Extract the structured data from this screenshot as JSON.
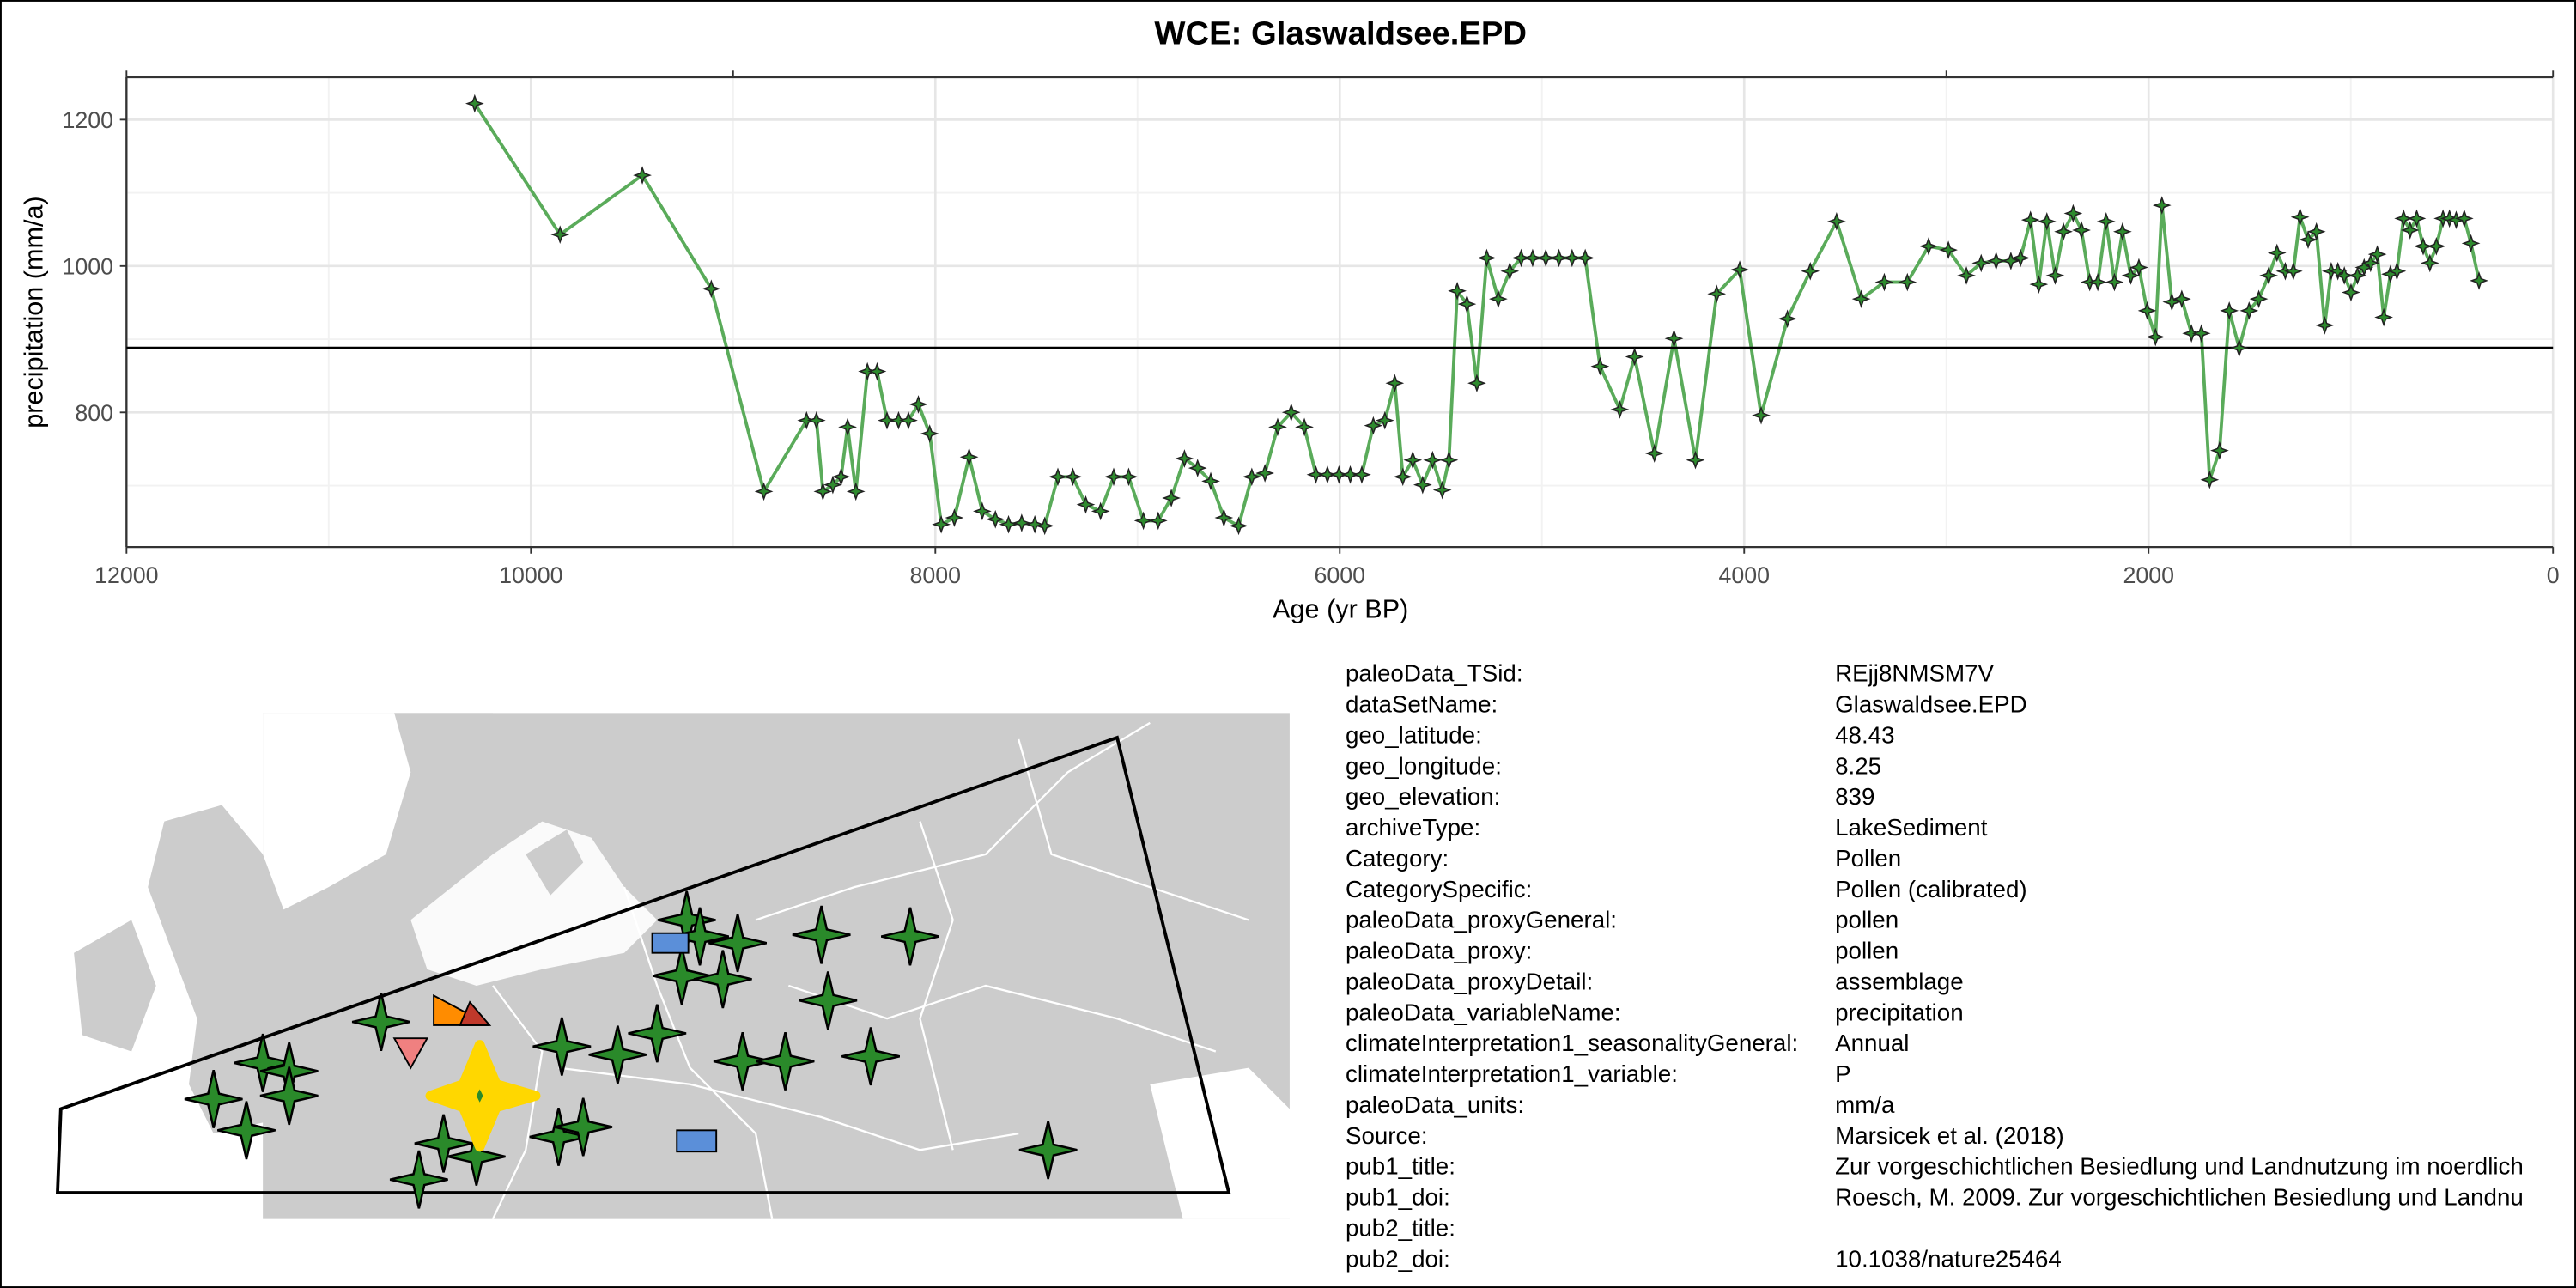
{
  "chart_data": {
    "type": "line",
    "title": "WCE: Glaswaldsee.EPD",
    "xlabel": "Age (yr BP)",
    "ylabel": "precipitation (mm/a)",
    "x": [
      10278,
      9856,
      9449,
      9108,
      8848,
      8637,
      8588,
      8556,
      8507,
      8466,
      8434,
      8393,
      8336,
      8288,
      8239,
      8182,
      8133,
      8084,
      8028,
      7971,
      7906,
      7833,
      7768,
      7703,
      7638,
      7573,
      7508,
      7459,
      7394,
      7320,
      7256,
      7183,
      7118,
      7044,
      6971,
      6898,
      6833,
      6768,
      6703,
      6638,
      6573,
      6500,
      6435,
      6370,
      6307,
      6240,
      6175,
      6118,
      6061,
      6004,
      5948,
      5891,
      5834,
      5777,
      5728,
      5688,
      5639,
      5590,
      5541,
      5493,
      5460,
      5419,
      5371,
      5322,
      5273,
      5216,
      5159,
      5103,
      5046,
      4981,
      4916,
      4851,
      4786,
      4713,
      4615,
      4542,
      4444,
      4347,
      4241,
      4136,
      4022,
      3916,
      3786,
      3673,
      3543,
      3421,
      3307,
      3193,
      3088,
      2990,
      2901,
      2828,
      2754,
      2681,
      2633,
      2584,
      2543,
      2503,
      2462,
      2421,
      2373,
      2332,
      2291,
      2251,
      2210,
      2169,
      2129,
      2088,
      2048,
      2007,
      1966,
      1934,
      1885,
      1836,
      1788,
      1739,
      1698,
      1649,
      1601,
      1552,
      1503,
      1455,
      1406,
      1365,
      1324,
      1284,
      1251,
      1211,
      1170,
      1129,
      1097,
      1064,
      1032,
      999,
      967,
      934,
      902,
      869,
      837,
      804,
      772,
      739,
      707,
      674,
      642,
      609,
      577,
      544,
      512,
      479,
      439,
      406,
      366
    ],
    "values": [
      1222,
      1043,
      1124,
      969,
      692,
      789,
      789,
      692,
      701,
      712,
      780,
      692,
      856,
      856,
      789,
      789,
      789,
      811,
      771,
      647,
      656,
      739,
      665,
      654,
      647,
      649,
      647,
      645,
      712,
      712,
      674,
      665,
      712,
      712,
      652,
      652,
      683,
      737,
      724,
      706,
      656,
      645,
      712,
      717,
      780,
      800,
      780,
      715,
      715,
      715,
      715,
      715,
      782,
      789,
      840,
      712,
      735,
      701,
      735,
      694,
      735,
      966,
      948,
      840,
      1011,
      955,
      993,
      1011,
      1011,
      1011,
      1011,
      1011,
      1011,
      863,
      804,
      876,
      744,
      901,
      735,
      962,
      995,
      796,
      928,
      993,
      1061,
      955,
      978,
      978,
      1027,
      1022,
      987,
      1004,
      1007,
      1007,
      1011,
      1063,
      975,
      1061,
      987,
      1047,
      1072,
      1049,
      978,
      978,
      1061,
      978,
      1047,
      987,
      998,
      939,
      903,
      1083,
      951,
      955,
      908,
      908,
      708,
      748,
      939,
      888,
      939,
      955,
      987,
      1018,
      993,
      993,
      1067,
      1036,
      1047,
      919,
      993,
      993,
      987,
      964,
      987,
      998,
      1004,
      1016,
      930,
      989,
      993,
      1065,
      1049,
      1065,
      1027,
      1004,
      1027,
      1065,
      1065,
      1063,
      1065,
      1031,
      980
    ],
    "color": "#5aab5a",
    "marker_color": "#2e8b2e",
    "xlim": [
      12000,
      0
    ],
    "xticks": [
      12000,
      10000,
      8000,
      6000,
      4000,
      2000,
      0
    ],
    "x2ticks": [
      12000,
      9000,
      3000,
      0
    ],
    "ylim": [
      616,
      1258
    ],
    "yticks": [
      800,
      1000,
      1200
    ],
    "hline": 888,
    "grid": true
  },
  "metadata": [
    {
      "key": "paleoData_TSid:",
      "value": "REjj8NMSM7V"
    },
    {
      "key": "dataSetName:",
      "value": "Glaswaldsee.EPD"
    },
    {
      "key": "geo_latitude:",
      "value": "48.43"
    },
    {
      "key": "geo_longitude:",
      "value": "8.25"
    },
    {
      "key": "geo_elevation:",
      "value": "839"
    },
    {
      "key": "archiveType:",
      "value": "LakeSediment"
    },
    {
      "key": "Category:",
      "value": "Pollen"
    },
    {
      "key": "CategorySpecific:",
      "value": "Pollen (calibrated)"
    },
    {
      "key": "paleoData_proxyGeneral:",
      "value": "pollen"
    },
    {
      "key": "paleoData_proxy:",
      "value": "pollen"
    },
    {
      "key": "paleoData_proxyDetail:",
      "value": "assemblage"
    },
    {
      "key": "paleoData_variableName:",
      "value": "precipitation"
    },
    {
      "key": "climateInterpretation1_seasonalityGeneral:",
      "value": "Annual"
    },
    {
      "key": "climateInterpretation1_variable:",
      "value": "P"
    },
    {
      "key": "paleoData_units:",
      "value": "mm/a"
    },
    {
      "key": "Source:",
      "value": "Marsicek et al. (2018)"
    },
    {
      "key": "pub1_title:",
      "value": "Zur vorgeschichtlichen Besiedlung und Landnutzung im noerdlich"
    },
    {
      "key": "pub1_doi:",
      "value": "Roesch, M. 2009. Zur vorgeschichtlichen Besiedlung und Landnu"
    },
    {
      "key": "pub2_title:"
    },
    {
      "key": "pub2_doi:",
      "value": "10.1038/nature25464"
    }
  ]
}
